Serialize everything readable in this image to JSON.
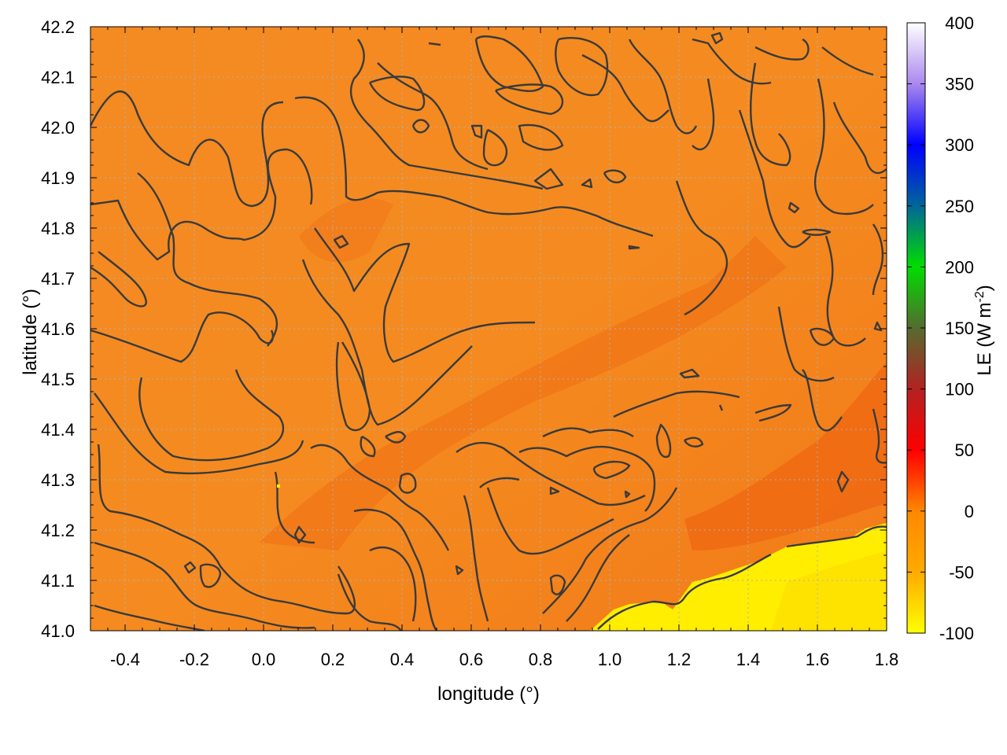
{
  "chart_data": {
    "type": "heatmap",
    "title": "",
    "xlabel": "longitude (°)",
    "ylabel": "latitude (°)",
    "xlim": [
      -0.5,
      1.8
    ],
    "ylim": [
      41.0,
      42.2
    ],
    "x_ticks": [
      -0.4,
      -0.2,
      0.0,
      0.2,
      0.4,
      0.6,
      0.8,
      1.0,
      1.2,
      1.4,
      1.6,
      1.8
    ],
    "x_tick_labels": [
      "-0.4",
      "-0.2",
      "0.0",
      "0.2",
      "0.4",
      "0.6",
      "0.8",
      "1.0",
      "1.2",
      "1.4",
      "1.6",
      "1.8"
    ],
    "y_ticks": [
      41.0,
      41.1,
      41.2,
      41.3,
      41.4,
      41.5,
      41.6,
      41.7,
      41.8,
      41.9,
      42.0,
      42.1,
      42.2
    ],
    "y_tick_labels": [
      "41.0",
      "41.1",
      "41.2",
      "41.3",
      "41.4",
      "41.5",
      "41.6",
      "41.7",
      "41.8",
      "41.9",
      "42.0",
      "42.1",
      "42.2"
    ],
    "grid": true,
    "colorbar": {
      "label": "LE (W m-2)",
      "label_main": "LE (W m",
      "label_sup": "-2",
      "label_close": ")",
      "range": [
        -100,
        400
      ],
      "ticks": [
        -100,
        -50,
        0,
        50,
        100,
        150,
        200,
        250,
        300,
        350,
        400
      ],
      "tick_labels": [
        "-100",
        "-50",
        "0",
        "50",
        "100",
        "150",
        "200",
        "250",
        "300",
        "350",
        "400"
      ],
      "colors": [
        {
          "value": -100,
          "color": "#ffff00"
        },
        {
          "value": -50,
          "color": "#ffaa00"
        },
        {
          "value": 0,
          "color": "#ff8800"
        },
        {
          "value": 30,
          "color": "#ff3300"
        },
        {
          "value": 50,
          "color": "#ff0000"
        },
        {
          "value": 100,
          "color": "#b22222"
        },
        {
          "value": 150,
          "color": "#556b2f"
        },
        {
          "value": 200,
          "color": "#00dd00"
        },
        {
          "value": 250,
          "color": "#006699"
        },
        {
          "value": 300,
          "color": "#0000ff"
        },
        {
          "value": 350,
          "color": "#aa88ee"
        },
        {
          "value": 400,
          "color": "#ffffff"
        }
      ]
    },
    "field": {
      "dominant_value": -25,
      "regions": [
        {
          "description": "sea",
          "approx_value": -95,
          "color": "#ffee00"
        },
        {
          "description": "land",
          "approx_value": -25,
          "color": "#f58a1f"
        },
        {
          "description": "valleys",
          "approx_value": -5,
          "color": "#f07015"
        }
      ]
    },
    "contours": true
  }
}
